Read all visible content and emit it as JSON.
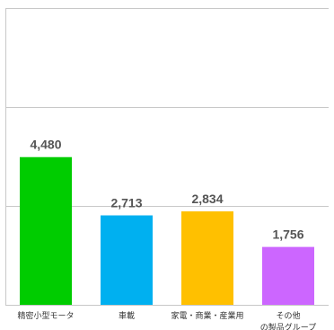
{
  "chart_data": {
    "type": "bar",
    "categories": [
      [
        "精密小型モータ"
      ],
      [
        "車載"
      ],
      [
        "家電・商業・産業用"
      ],
      [
        "その他",
        "の製品グループ"
      ]
    ],
    "values": [
      4480,
      2713,
      2834,
      1756
    ],
    "value_labels": [
      "4,480",
      "2,713",
      "2,834",
      "1,756"
    ],
    "colors": [
      "#00cc00",
      "#00b0f0",
      "#ffc000",
      "#cc66ff"
    ],
    "gridline_color": "#c8c8c8",
    "ylim": [
      0,
      9000
    ],
    "grid": true,
    "title": "",
    "xlabel": "",
    "ylabel": ""
  }
}
